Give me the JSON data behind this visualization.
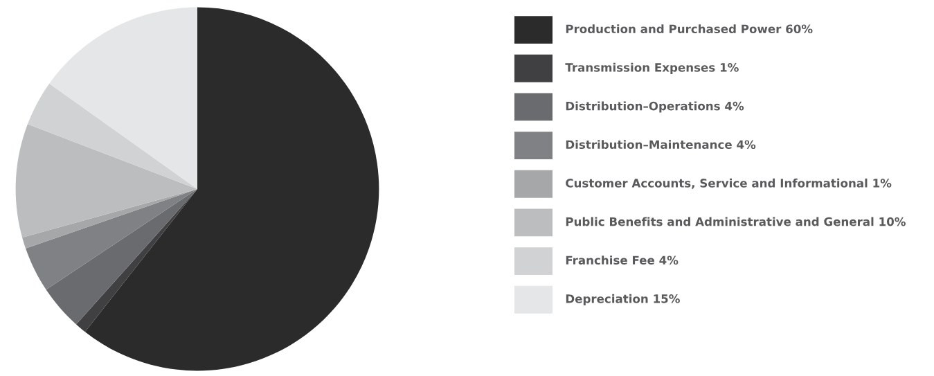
{
  "chart_data": {
    "type": "pie",
    "categories": [
      "Production and Purchased Power",
      "Transmission Expenses",
      "Distribution–Operations",
      "Distribution–Maintenance",
      "Customer Accounts, Service and Informational",
      "Public Benefits and Administrative and General",
      "Franchise Fee",
      "Depreciation"
    ],
    "values": [
      60,
      1,
      4,
      4,
      1,
      10,
      4,
      15
    ],
    "value_labels": [
      "60%",
      "1%",
      "4%",
      "4%",
      "1%",
      "10%",
      "4%",
      "15%"
    ],
    "colors": [
      "#2b2b2b",
      "#404042",
      "#6a6b6e",
      "#808184",
      "#a6a7a9",
      "#bcbdbf",
      "#d1d2d3",
      "#e5e6e7"
    ],
    "legend": "right"
  }
}
